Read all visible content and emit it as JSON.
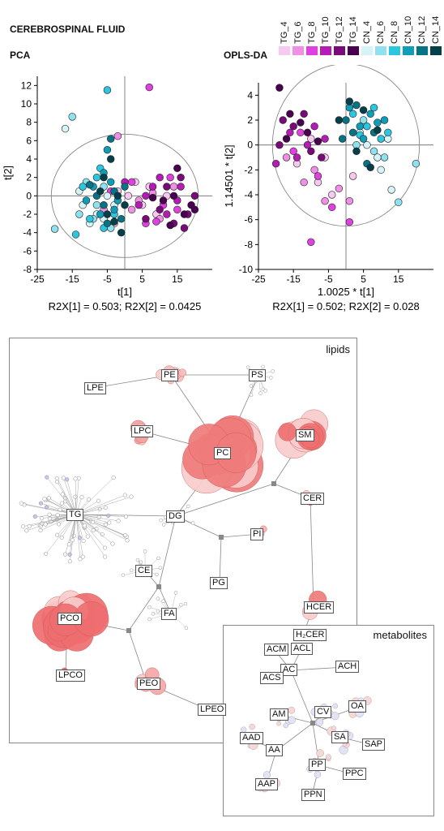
{
  "figure_title": "CEREBROSPINAL FLUID",
  "legend": {
    "items": [
      {
        "label": "TG_4",
        "color": "#f7c8f0"
      },
      {
        "label": "TG_6",
        "color": "#ef8fe6"
      },
      {
        "label": "TG_8",
        "color": "#e040e0"
      },
      {
        "label": "TG_10",
        "color": "#b51cb5"
      },
      {
        "label": "TG_12",
        "color": "#7a0a7a"
      },
      {
        "label": "TG_14",
        "color": "#4a0050"
      },
      {
        "label": "CN_4",
        "color": "#d6f3f8"
      },
      {
        "label": "CN_6",
        "color": "#8ee2f0"
      },
      {
        "label": "CN_8",
        "color": "#2cc6e0"
      },
      {
        "label": "CN_10",
        "color": "#0f9eb8"
      },
      {
        "label": "CN_12",
        "color": "#087384"
      },
      {
        "label": "CN_14",
        "color": "#053f4a"
      }
    ]
  },
  "chart_data": [
    {
      "type": "scatter",
      "title": "PCA",
      "xlabel": "t[1]",
      "ylabel": "t[2]",
      "caption": "R2X[1] = 0.503; R2X[2] = 0.0425",
      "xlim": [
        -25,
        25
      ],
      "ylim": [
        -8,
        13
      ],
      "xticks": [
        -25,
        -15,
        -5,
        5,
        15
      ],
      "yticks": [
        -8,
        -6,
        -4,
        -2,
        0,
        2,
        4,
        6,
        8,
        10,
        12
      ],
      "groups": [
        {
          "label": "TG_4",
          "points": [
            [
              -2,
              0.5
            ],
            [
              5,
              -1
            ],
            [
              9,
              -2
            ],
            [
              12,
              0
            ],
            [
              3,
              1.5
            ],
            [
              -3,
              -3
            ],
            [
              7,
              1
            ],
            [
              1,
              0
            ]
          ]
        },
        {
          "label": "TG_6",
          "points": [
            [
              -2,
              6.5
            ],
            [
              4,
              -0.5
            ],
            [
              10,
              -2.5
            ],
            [
              14,
              1
            ],
            [
              8,
              0.3
            ],
            [
              -6,
              -1.5
            ],
            [
              2,
              -1.5
            ]
          ]
        },
        {
          "label": "TG_8",
          "points": [
            [
              7,
              11.8
            ],
            [
              6,
              -3
            ],
            [
              11,
              -1
            ],
            [
              15,
              -1.5
            ],
            [
              2,
              1.5
            ],
            [
              -4,
              0.5
            ],
            [
              9,
              -2.8
            ],
            [
              13,
              2
            ]
          ]
        },
        {
          "label": "TG_10",
          "points": [
            [
              4,
              -1
            ],
            [
              8,
              1
            ],
            [
              12,
              -2
            ],
            [
              16,
              1
            ],
            [
              0,
              1.5
            ],
            [
              6,
              0
            ],
            [
              10,
              2
            ],
            [
              15,
              -0.5
            ]
          ]
        },
        {
          "label": "TG_12",
          "points": [
            [
              14,
              -3
            ],
            [
              18,
              -2
            ],
            [
              10,
              -1.5
            ],
            [
              16,
              2
            ],
            [
              20,
              0
            ],
            [
              12,
              1
            ],
            [
              17,
              -3.5
            ],
            [
              6,
              -2.5
            ]
          ]
        },
        {
          "label": "TG_14",
          "points": [
            [
              14,
              0
            ],
            [
              19,
              -1
            ],
            [
              15,
              3
            ],
            [
              11,
              -0.5
            ],
            [
              17,
              -2
            ],
            [
              20,
              -1.5
            ],
            [
              13,
              -3.2
            ],
            [
              8,
              -0.2
            ]
          ]
        },
        {
          "label": "CN_4",
          "points": [
            [
              -17,
              7.3
            ],
            [
              -12,
              -1
            ],
            [
              -6,
              -2.5
            ],
            [
              -10,
              -3
            ],
            [
              -3,
              -1
            ],
            [
              -8,
              -2
            ],
            [
              -13,
              0.5
            ],
            [
              -5,
              0
            ]
          ]
        },
        {
          "label": "CN_6",
          "points": [
            [
              -15,
              8.6
            ],
            [
              -20,
              -3.6
            ],
            [
              -8,
              -1
            ],
            [
              -11,
              1.5
            ],
            [
              -4,
              -3.5
            ],
            [
              -9,
              -2.5
            ],
            [
              -13,
              -2
            ],
            [
              -6,
              1
            ]
          ]
        },
        {
          "label": "CN_8",
          "points": [
            [
              -5,
              11.5
            ],
            [
              -14,
              -4.2
            ],
            [
              -7,
              3
            ],
            [
              -10,
              -2.5
            ],
            [
              -12,
              1
            ],
            [
              -3,
              -2
            ],
            [
              -8,
              2
            ],
            [
              -6,
              -3.5
            ]
          ]
        },
        {
          "label": "CN_10",
          "points": [
            [
              -5,
              5
            ],
            [
              -6,
              2.5
            ],
            [
              -9,
              1
            ],
            [
              -11,
              -0.5
            ],
            [
              -3,
              -1.5
            ],
            [
              -7,
              -2
            ],
            [
              -4,
              1.5
            ],
            [
              -2,
              -0.5
            ]
          ]
        },
        {
          "label": "CN_12",
          "points": [
            [
              -4,
              6.2
            ],
            [
              -6,
              -1
            ],
            [
              -1,
              -2.5
            ],
            [
              -8,
              0
            ],
            [
              -3,
              0.5
            ],
            [
              -5,
              -3
            ],
            [
              -10,
              1.2
            ],
            [
              0,
              1
            ]
          ]
        },
        {
          "label": "CN_14",
          "points": [
            [
              -4,
              4
            ],
            [
              -1,
              -4
            ],
            [
              -5,
              -2
            ],
            [
              -2,
              0
            ],
            [
              -7,
              0.5
            ],
            [
              -3,
              -2.8
            ],
            [
              -6,
              2
            ],
            [
              0,
              -1
            ]
          ]
        }
      ]
    },
    {
      "type": "scatter",
      "title": "OPLS-DA",
      "xlabel": "1.0025 * t[1]",
      "ylabel": "1.14501 * t[2]",
      "caption": "R2X[1] = 0.502; R2X[2] = 0.028",
      "xlim": [
        -25,
        25
      ],
      "ylim": [
        -10,
        5
      ],
      "xticks": [
        -25,
        -15,
        -5,
        5,
        15
      ],
      "yticks": [
        -10,
        -8,
        -6,
        -4,
        -2,
        0,
        2,
        4
      ],
      "groups": [
        {
          "label": "TG_4",
          "points": [
            [
              -8,
              -3
            ],
            [
              -14,
              -1.5
            ],
            [
              -4,
              -4
            ],
            [
              2,
              -2.5
            ],
            [
              -10,
              0.5
            ],
            [
              -6,
              -1
            ]
          ]
        },
        {
          "label": "TG_6",
          "points": [
            [
              -6,
              -4.5
            ],
            [
              -17,
              -1
            ],
            [
              -12,
              -3
            ],
            [
              -2,
              -3.5
            ],
            [
              1,
              -4.5
            ],
            [
              -9,
              -2
            ]
          ]
        },
        {
          "label": "TG_8",
          "points": [
            [
              -10,
              -7.8
            ],
            [
              -4,
              -5
            ],
            [
              1,
              -6.2
            ],
            [
              -15,
              -0.5
            ],
            [
              -8,
              -2.5
            ],
            [
              -13,
              1
            ]
          ]
        },
        {
          "label": "TG_10",
          "points": [
            [
              -16,
              1
            ],
            [
              -11,
              0
            ],
            [
              -6,
              0.5
            ],
            [
              -20,
              -1.5
            ],
            [
              -14,
              -1
            ],
            [
              -9,
              1.5
            ]
          ]
        },
        {
          "label": "TG_12",
          "points": [
            [
              -18,
              2
            ],
            [
              -12,
              2.5
            ],
            [
              -7,
              -1
            ],
            [
              -19,
              0
            ],
            [
              -15,
              1.5
            ],
            [
              -10,
              -0.5
            ]
          ]
        },
        {
          "label": "TG_14",
          "points": [
            [
              -19,
              4.6
            ],
            [
              -16,
              2.5
            ],
            [
              -13,
              1.8
            ],
            [
              -8,
              0.3
            ],
            [
              -17,
              0.5
            ],
            [
              -11,
              1
            ]
          ]
        },
        {
          "label": "CN_4",
          "points": [
            [
              13,
              -3.6
            ],
            [
              10,
              -2
            ],
            [
              6,
              0
            ],
            [
              12,
              0.5
            ],
            [
              9,
              -1
            ],
            [
              4,
              1
            ]
          ]
        },
        {
          "label": "CN_6",
          "points": [
            [
              15,
              -4.6
            ],
            [
              20,
              -1.5
            ],
            [
              8,
              -0.5
            ],
            [
              5,
              2
            ],
            [
              11,
              -1
            ],
            [
              3,
              0
            ]
          ]
        },
        {
          "label": "CN_8",
          "points": [
            [
              6,
              1.5
            ],
            [
              10,
              0.5
            ],
            [
              2,
              2.5
            ],
            [
              8,
              3
            ],
            [
              12,
              1
            ],
            [
              4,
              0.8
            ]
          ]
        },
        {
          "label": "CN_10",
          "points": [
            [
              4,
              1.5
            ],
            [
              7,
              2.5
            ],
            [
              1,
              3
            ],
            [
              9,
              1.8
            ],
            [
              5,
              0.5
            ],
            [
              11,
              2
            ]
          ]
        },
        {
          "label": "CN_12",
          "points": [
            [
              0,
              2
            ],
            [
              3,
              3.2
            ],
            [
              6,
              -1.5
            ],
            [
              -1,
              0.5
            ],
            [
              8,
              1
            ],
            [
              2,
              1
            ]
          ]
        },
        {
          "label": "CN_14",
          "points": [
            [
              1,
              3.5
            ],
            [
              5,
              2.8
            ],
            [
              9,
              1.2
            ],
            [
              -2,
              2
            ],
            [
              7,
              -1.8
            ],
            [
              3,
              -0.5
            ]
          ]
        }
      ]
    }
  ],
  "network": {
    "box_title": "lipids",
    "inset_title": "metabolites",
    "lipid_nodes": [
      {
        "key": "LPE",
        "label": "LPE"
      },
      {
        "key": "PE",
        "label": "PE"
      },
      {
        "key": "PS",
        "label": "PS"
      },
      {
        "key": "LPC",
        "label": "LPC"
      },
      {
        "key": "PC",
        "label": "PC"
      },
      {
        "key": "SM",
        "label": "SM"
      },
      {
        "key": "CER",
        "label": "CER"
      },
      {
        "key": "TG",
        "label": "TG"
      },
      {
        "key": "DG",
        "label": "DG"
      },
      {
        "key": "PI",
        "label": "PI"
      },
      {
        "key": "CE",
        "label": "CE"
      },
      {
        "key": "PG",
        "label": "PG"
      },
      {
        "key": "HCER",
        "label": "HCER"
      },
      {
        "key": "FA",
        "label": "FA"
      },
      {
        "key": "H2CER",
        "label": "H₂CER"
      },
      {
        "key": "PCO",
        "label": "PCO"
      },
      {
        "key": "LPCO",
        "label": "LPCO"
      },
      {
        "key": "PEO",
        "label": "PEO"
      },
      {
        "key": "LPEO",
        "label": "LPEO"
      }
    ],
    "metabolite_nodes": [
      {
        "key": "ACM",
        "label": "ACM"
      },
      {
        "key": "ACL",
        "label": "ACL"
      },
      {
        "key": "AC",
        "label": "AC"
      },
      {
        "key": "ACH",
        "label": "ACH"
      },
      {
        "key": "ACS",
        "label": "ACS"
      },
      {
        "key": "CV",
        "label": "CV"
      },
      {
        "key": "OA",
        "label": "OA"
      },
      {
        "key": "AM",
        "label": "AM"
      },
      {
        "key": "SA",
        "label": "SA"
      },
      {
        "key": "SAP",
        "label": "SAP"
      },
      {
        "key": "AAD",
        "label": "AAD"
      },
      {
        "key": "AA",
        "label": "AA"
      },
      {
        "key": "PP",
        "label": "PP"
      },
      {
        "key": "PPC",
        "label": "PPC"
      },
      {
        "key": "AAP",
        "label": "AAP"
      },
      {
        "key": "PPN",
        "label": "PPN"
      }
    ]
  }
}
